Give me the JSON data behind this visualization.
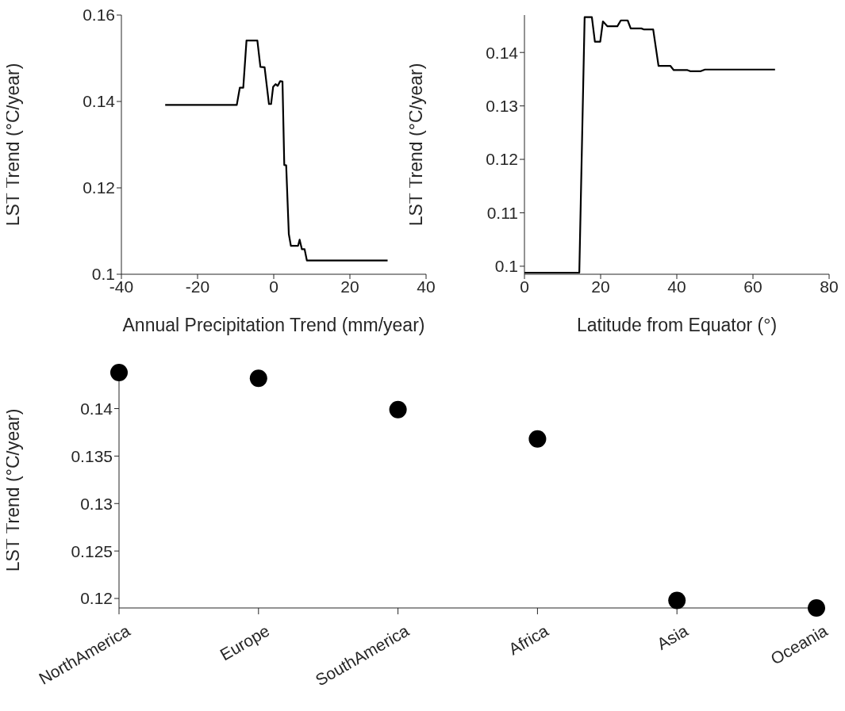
{
  "chart_data": [
    {
      "type": "line",
      "xlabel": "Annual Precipitation Trend (mm/year)",
      "ylabel": "LST Trend (°C/year)",
      "xlim": [
        -40,
        40
      ],
      "xticks": [
        -40,
        -20,
        0,
        20,
        40
      ],
      "ylim": [
        0.1,
        0.16
      ],
      "yticks": [
        0.1,
        0.12,
        0.14,
        0.16
      ],
      "line_style": "solid",
      "series": [
        {
          "color": "#000000",
          "x": [
            -28.5,
            -9.7,
            -8.9,
            -8.0,
            -7.15,
            -4.3,
            -3.5,
            -2.4,
            -1.25,
            -0.7,
            -0.15,
            0.48,
            1.04,
            1.7,
            2.3,
            2.77,
            3.27,
            3.96,
            4.5,
            6.4,
            6.8,
            7.4,
            8.1,
            8.7,
            29.9
          ],
          "values": [
            0.1392,
            0.1392,
            0.1432,
            0.1432,
            0.1541,
            0.1541,
            0.148,
            0.1479,
            0.1394,
            0.1394,
            0.1434,
            0.144,
            0.1436,
            0.1447,
            0.1446,
            0.1253,
            0.1252,
            0.1093,
            0.1066,
            0.1066,
            0.108,
            0.1058,
            0.1058,
            0.1032,
            0.1032
          ]
        }
      ]
    },
    {
      "type": "line",
      "xlabel": "Latitude from Equator (°)",
      "ylabel": "LST Trend (°C/year)",
      "xlim": [
        0,
        80
      ],
      "xticks": [
        0,
        20,
        40,
        60,
        80
      ],
      "ylim": [
        0.0985,
        0.147
      ],
      "yticks": [
        0.1,
        0.11,
        0.12,
        0.13,
        0.14
      ],
      "line_style": "solid",
      "series": [
        {
          "color": "#000000",
          "x": [
            0,
            14.4,
            15.8,
            17.7,
            18.5,
            19.9,
            20.6,
            21.8,
            24.4,
            25.3,
            27.1,
            27.9,
            30.7,
            31.4,
            33.8,
            35.2,
            38.3,
            39.2,
            42.8,
            43.5,
            46.3,
            47.4,
            65.8
          ],
          "values": [
            0.0988,
            0.0988,
            0.1466,
            0.1466,
            0.142,
            0.142,
            0.1458,
            0.1449,
            0.1449,
            0.146,
            0.146,
            0.1445,
            0.1445,
            0.1443,
            0.1443,
            0.1375,
            0.1375,
            0.1367,
            0.1367,
            0.1365,
            0.1365,
            0.1368,
            0.1368
          ]
        }
      ]
    },
    {
      "type": "scatter",
      "ylabel": "LST Trend (°C/year)",
      "categories": [
        "NorthAmerica",
        "Europe",
        "SouthAmerica",
        "Africa",
        "Asia",
        "Oceania"
      ],
      "ylim": [
        0.119,
        0.1438
      ],
      "yticks": [
        0.12,
        0.125,
        0.13,
        0.135,
        0.14
      ],
      "marker": "circle",
      "series": [
        {
          "color": "#000000",
          "values": [
            0.1438,
            0.1432,
            0.1399,
            0.1368,
            0.1198,
            0.119
          ]
        }
      ]
    }
  ]
}
